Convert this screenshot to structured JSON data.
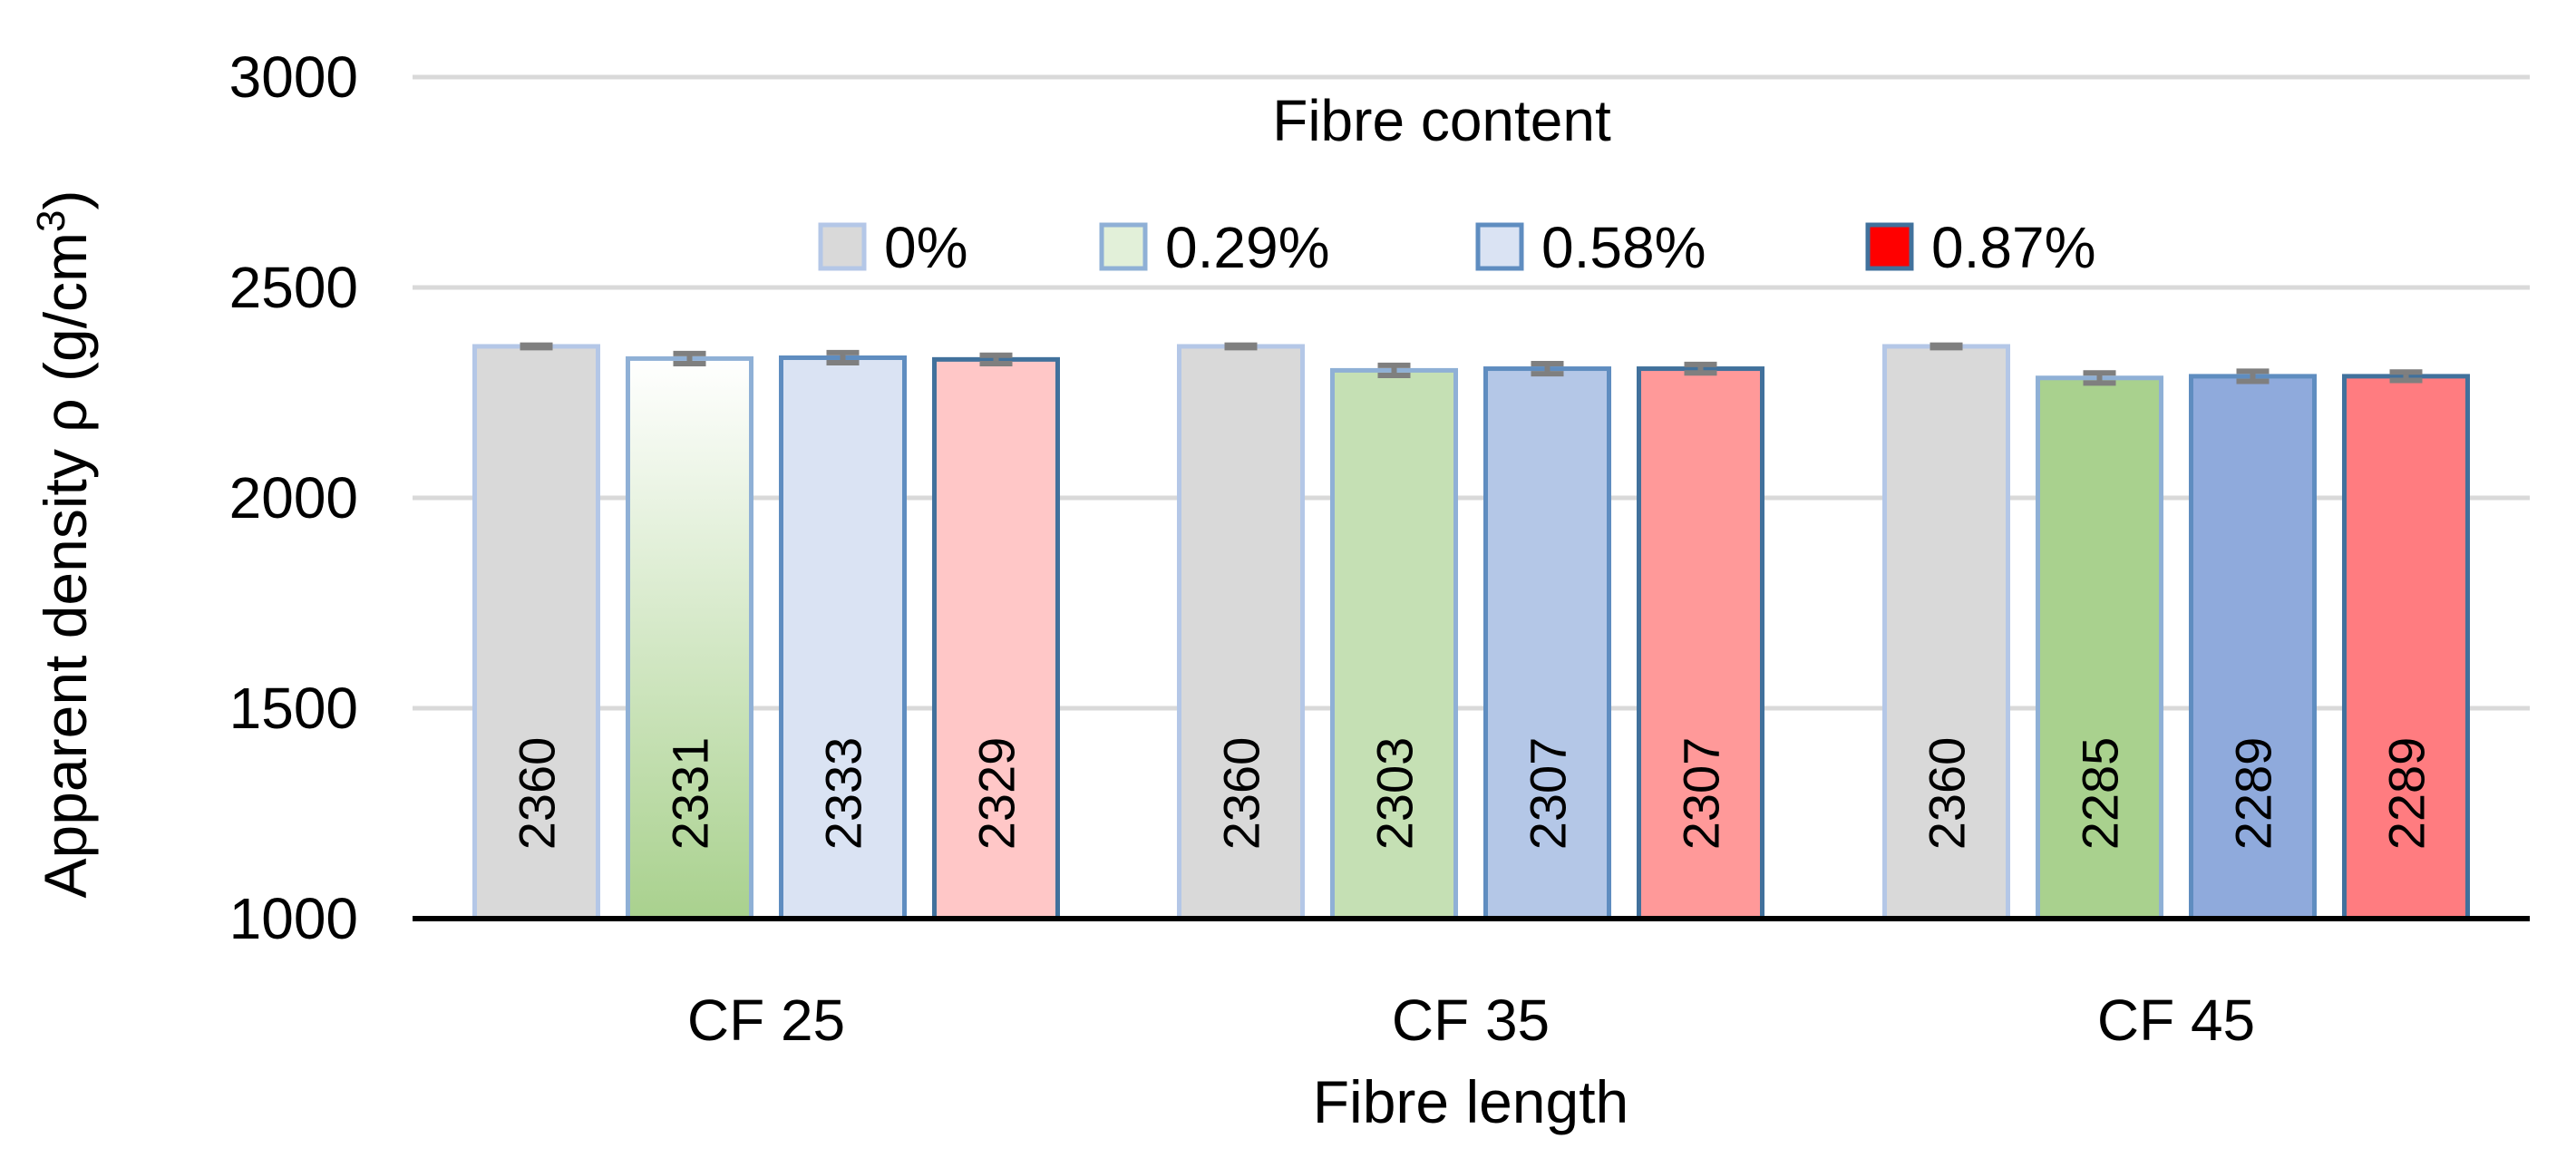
{
  "chart_data": {
    "type": "bar",
    "xlabel": "Fibre length",
    "ylabel": "Apparent density ρ (g/cm",
    "ylabel_superscript": "3",
    "ylabel_close": ")",
    "ylim": [
      1000,
      3000
    ],
    "yticks": [
      "1000",
      "1500",
      "2000",
      "2500",
      "3000"
    ],
    "grid": true,
    "legend_title": "Fibre content",
    "legend_position": "top-center",
    "categories": [
      "CF 25",
      "CF 35",
      "CF 45"
    ],
    "series": [
      {
        "name": "0%",
        "values": [
          2360,
          2360,
          2360
        ],
        "labels": [
          "2360",
          "2360",
          "2360"
        ],
        "error": [
          3,
          3,
          3
        ],
        "fills": [
          "#d9d9d9",
          "#d9d9d9",
          "#d9d9d9"
        ],
        "stroke": "#b4c7e7"
      },
      {
        "name": "0.29%",
        "values": [
          2331,
          2303,
          2285
        ],
        "labels": [
          "2331",
          "2303",
          "2285"
        ],
        "error": [
          12,
          12,
          12
        ],
        "fills": [
          "gradient-green",
          "#c5e0b4",
          "#a9d18e"
        ],
        "stroke": "#8fb0d6"
      },
      {
        "name": "0.58%",
        "values": [
          2333,
          2307,
          2289
        ],
        "labels": [
          "2333",
          "2307",
          "2289"
        ],
        "error": [
          12,
          12,
          12
        ],
        "fills": [
          "#dae3f3",
          "#b4c7e7",
          "#8faadc"
        ],
        "stroke": "#5f8dc0"
      },
      {
        "name": "0.87%",
        "values": [
          2329,
          2307,
          2289
        ],
        "labels": [
          "2329",
          "2307",
          "2289"
        ],
        "error": [
          10,
          10,
          10
        ],
        "fills": [
          "#ffc7c7",
          "#ff9999",
          "#ff7c80"
        ],
        "stroke": "#41719c"
      }
    ],
    "legend_swatches": [
      "#d9d9d9",
      "#e2f0d9",
      "#dae3f3",
      "#ff0000"
    ],
    "legend_swatch_strokes": [
      "#b4c7e7",
      "#8fb0d6",
      "#5f8dc0",
      "#41719c"
    ],
    "colors": {
      "grid": "#d9d9d9",
      "axis": "#000000",
      "errorbar": "#7f7f7f"
    }
  }
}
